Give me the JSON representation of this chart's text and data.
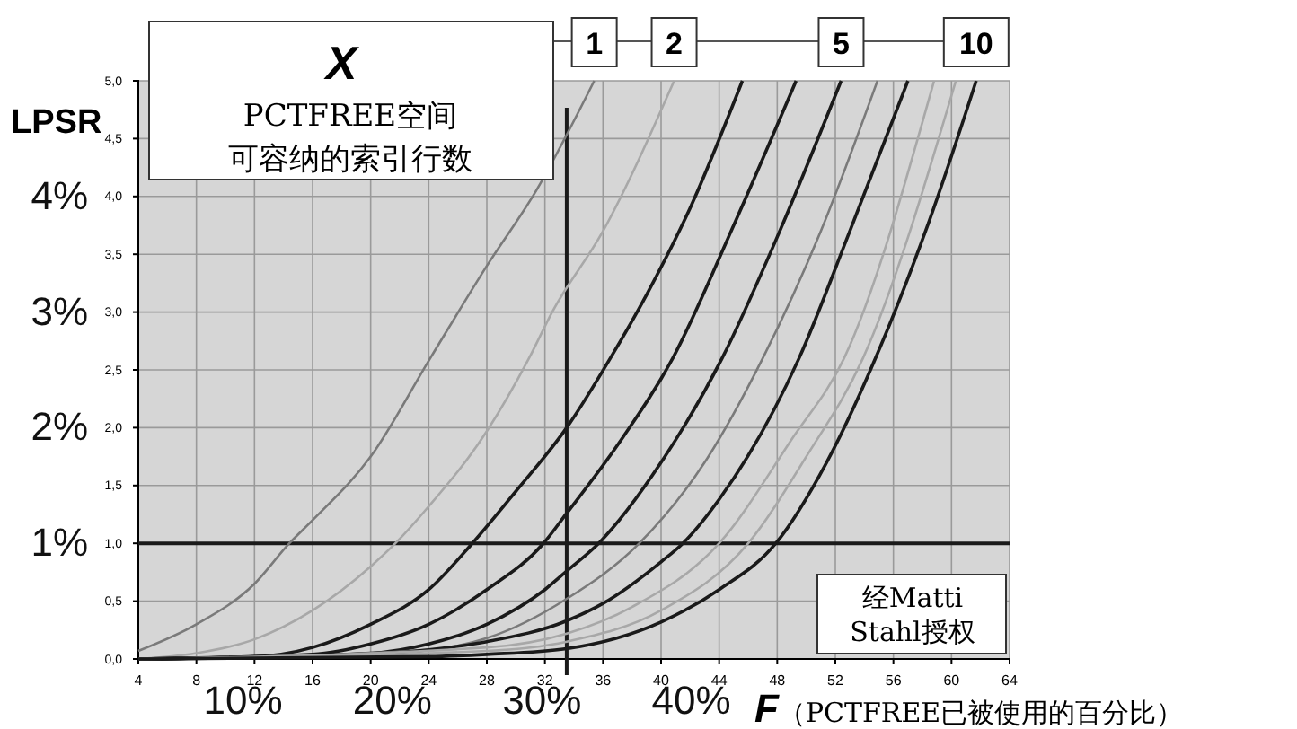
{
  "chart_data": {
    "type": "line",
    "legend_title": "X",
    "y2label": "LPSR",
    "xlabel": "F（PCTFREE已被使用的百分比）",
    "annotations": [
      "PCTFREE空间",
      "可容纳的索引行数",
      "经Matti\nStahl授权"
    ],
    "xlim": [
      4,
      64
    ],
    "xticks": [
      4,
      8,
      12,
      16,
      20,
      24,
      28,
      32,
      36,
      40,
      44,
      48,
      52,
      56,
      60,
      64
    ],
    "ylim": [
      0,
      5
    ],
    "yticks": [
      {
        "value": 0,
        "label": "0,0"
      },
      {
        "value": 0.5,
        "label": "0,5"
      },
      {
        "value": 1,
        "label": "1,0"
      },
      {
        "value": 1.5,
        "label": "1,5"
      },
      {
        "value": 2,
        "label": "2,0"
      },
      {
        "value": 2.5,
        "label": "2,5"
      },
      {
        "value": 3,
        "label": "3,0"
      },
      {
        "value": 3.5,
        "label": "3,5"
      },
      {
        "value": 4,
        "label": "4,0"
      },
      {
        "value": 4.5,
        "label": "4,5"
      },
      {
        "value": 5,
        "label": "5,0"
      }
    ],
    "y2lim": [
      0,
      5
    ],
    "y2ticks": [
      {
        "value": 1,
        "label": "1%"
      },
      {
        "value": 2,
        "label": "2%"
      },
      {
        "value": 3,
        "label": "3%"
      },
      {
        "value": 4,
        "label": "4%"
      }
    ],
    "x2lim": [
      3.0,
      61.3
    ],
    "x2ticks": [
      {
        "value": 10,
        "label": "10%"
      },
      {
        "value": 20,
        "label": "20%"
      },
      {
        "value": 30,
        "label": "30%"
      },
      {
        "value": 40,
        "label": "40%"
      }
    ],
    "grid": true,
    "legend": "top",
    "marker": "none",
    "line_style": "solid",
    "ref_lines": [
      {
        "axis": "y",
        "value": 1,
        "color": "#1a1a1a"
      },
      {
        "axis": "x",
        "value": 33.5,
        "color": "#1a1a1a"
      }
    ],
    "series": [
      {
        "name": "1",
        "color": "#7a7a7a",
        "x": [
          4,
          8,
          12,
          14.4,
          16,
          20,
          24.1,
          28,
          31.4,
          35.4
        ],
        "values": [
          0.07,
          0.3,
          0.65,
          1.0,
          1.2,
          1.75,
          2.6,
          3.4,
          4.05,
          5.0
        ]
      },
      {
        "name": "2",
        "color": "#a8a8a8",
        "x": [
          4,
          8,
          12,
          16,
          20,
          21.7,
          24,
          28,
          30.9,
          32.5,
          36,
          40.9
        ],
        "values": [
          0,
          0.05,
          0.17,
          0.42,
          0.8,
          1.0,
          1.32,
          1.97,
          2.6,
          3.0,
          3.7,
          5.0
        ]
      },
      {
        "color": "#1a1a1a",
        "x": [
          4,
          12,
          16,
          20,
          24,
          27,
          30,
          33.5,
          36.5,
          39,
          42,
          45.6
        ],
        "values": [
          0,
          0.02,
          0.1,
          0.3,
          0.6,
          1.0,
          1.45,
          2.0,
          2.6,
          3.15,
          3.9,
          5.0
        ]
      },
      {
        "color": "#1a1a1a",
        "x": [
          4,
          16,
          20,
          24,
          28,
          31.9,
          33.5,
          37,
          40.8,
          45,
          49.3
        ],
        "values": [
          0,
          0.04,
          0.13,
          0.3,
          0.6,
          1.0,
          1.26,
          1.85,
          2.6,
          3.75,
          5.0
        ]
      },
      {
        "name": "5",
        "color": "#1a1a1a",
        "x": [
          4,
          20,
          24,
          28,
          32,
          33.5,
          35.7,
          40,
          44.2,
          48,
          52.4
        ],
        "values": [
          0,
          0.05,
          0.13,
          0.3,
          0.6,
          0.76,
          1.0,
          1.7,
          2.6,
          3.65,
          5.0
        ]
      },
      {
        "color": "#7a7a7a",
        "x": [
          4,
          24,
          28,
          33.5,
          38.5,
          43,
          47,
          51,
          54.9
        ],
        "values": [
          0,
          0.08,
          0.18,
          0.52,
          1.0,
          1.7,
          2.6,
          3.7,
          5.0
        ]
      },
      {
        "color": "#1a1a1a",
        "x": [
          4,
          16,
          24,
          28,
          33.5,
          36,
          40,
          41.5,
          44,
          49.5,
          53,
          57
        ],
        "values": [
          0,
          0.02,
          0.08,
          0.15,
          0.33,
          0.48,
          0.84,
          1.0,
          1.38,
          2.6,
          3.7,
          5.0
        ]
      },
      {
        "color": "#a8a8a8",
        "x": [
          4,
          28,
          33.5,
          38,
          44,
          49,
          52.6,
          58.8
        ],
        "values": [
          0,
          0.1,
          0.22,
          0.45,
          1.0,
          1.9,
          2.6,
          5.0
        ]
      },
      {
        "color": "#a8a8a8",
        "x": [
          4,
          28,
          33.5,
          40,
          46,
          50,
          53.9,
          60.3
        ],
        "values": [
          0,
          0.07,
          0.15,
          0.42,
          1.0,
          1.75,
          2.6,
          5.0
        ]
      },
      {
        "name": "10",
        "color": "#1a1a1a",
        "x": [
          4,
          24,
          28,
          33.5,
          40,
          44,
          47.9,
          51.4,
          55.1,
          58.5,
          61.7
        ],
        "values": [
          0,
          0.02,
          0.04,
          0.09,
          0.32,
          0.6,
          1.0,
          1.7,
          2.7,
          3.8,
          5.0
        ]
      }
    ]
  }
}
